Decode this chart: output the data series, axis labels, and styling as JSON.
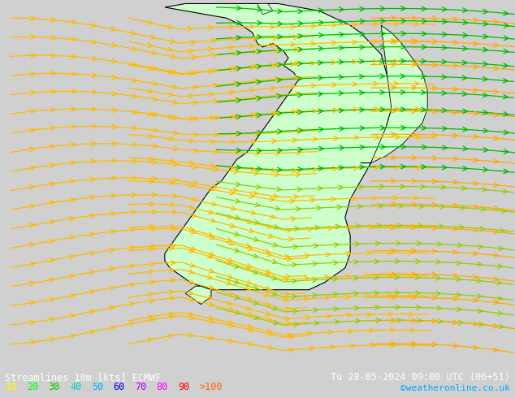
{
  "title_left": "Streamlines 10m [kts] ECMWF",
  "title_right": "Tu 28-05-2024 09:00 UTC (06+51)",
  "copyright": "©weatheronline.co.uk",
  "legend_values": [
    "10",
    "20",
    "30",
    "40",
    "50",
    "60",
    "70",
    "80",
    "90",
    ">100"
  ],
  "legend_colors": [
    "#ffff00",
    "#00ff00",
    "#00cc00",
    "#00cccc",
    "#00aaff",
    "#0000ff",
    "#aa00ff",
    "#ff00ff",
    "#ff0000",
    "#ff6600"
  ],
  "bg_color": "#d0d0d0",
  "land_color": "#e8e8e8",
  "scan_land_color": "#ccffcc",
  "border_color": "#000000",
  "streamline_colors": {
    "slow": "#ffaa00",
    "medium": "#88cc00",
    "fast": "#00cc00",
    "vfast": "#00aa44"
  },
  "figsize": [
    6.34,
    4.9
  ],
  "dpi": 100
}
